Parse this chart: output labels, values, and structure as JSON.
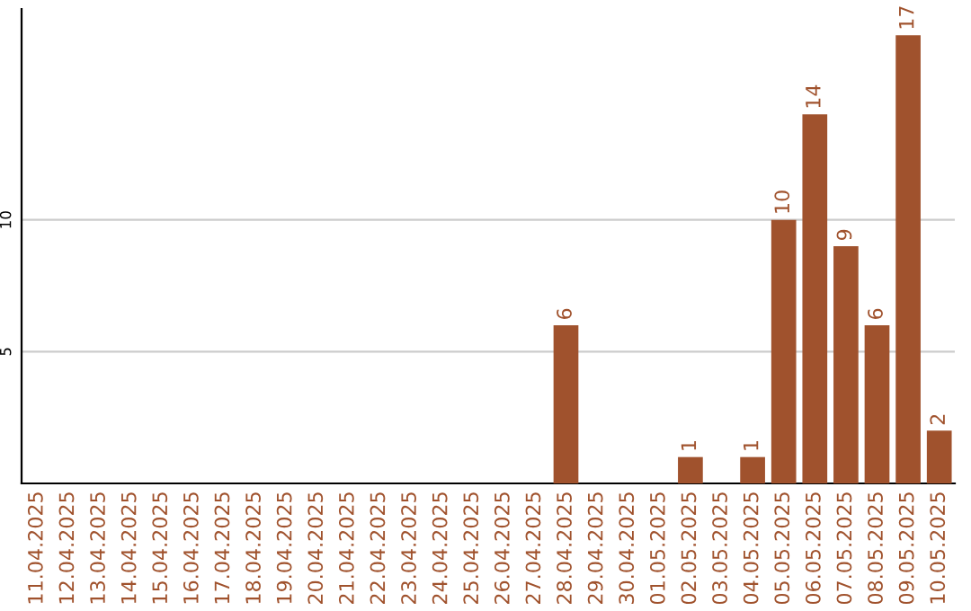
{
  "chart_data": {
    "type": "bar",
    "categories": [
      "11.04.2025",
      "12.04.2025",
      "13.04.2025",
      "14.04.2025",
      "15.04.2025",
      "16.04.2025",
      "17.04.2025",
      "18.04.2025",
      "19.04.2025",
      "20.04.2025",
      "21.04.2025",
      "22.04.2025",
      "23.04.2025",
      "24.04.2025",
      "25.04.2025",
      "26.04.2025",
      "27.04.2025",
      "28.04.2025",
      "29.04.2025",
      "30.04.2025",
      "01.05.2025",
      "02.05.2025",
      "03.05.2025",
      "04.05.2025",
      "05.05.2025",
      "06.05.2025",
      "07.05.2025",
      "08.05.2025",
      "09.05.2025",
      "10.05.2025"
    ],
    "values": [
      0,
      0,
      0,
      0,
      0,
      0,
      0,
      0,
      0,
      0,
      0,
      0,
      0,
      0,
      0,
      0,
      0,
      6,
      0,
      0,
      0,
      1,
      0,
      1,
      10,
      14,
      9,
      6,
      17,
      2
    ],
    "value_labels": [
      null,
      null,
      null,
      null,
      null,
      null,
      null,
      null,
      null,
      null,
      null,
      null,
      null,
      null,
      null,
      null,
      null,
      "6",
      null,
      null,
      null,
      "1",
      null,
      "1",
      "10",
      "14",
      "9",
      "6",
      "17",
      "2"
    ],
    "color": "#a0522d",
    "ylim": [
      0,
      18
    ],
    "yticks": [
      5,
      10
    ],
    "grid": "y"
  }
}
